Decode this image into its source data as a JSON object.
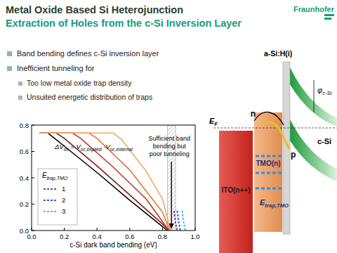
{
  "header": {
    "title": "Metal Oxide Based Si Heterojunction",
    "subtitle": "Extraction of Holes from the c-Si Inversion Layer",
    "logo": "Fraunhofer"
  },
  "bullets": [
    {
      "text": "Band bending defines c-Si inversion layer",
      "items": []
    },
    {
      "text": "Inefficient tunneling for",
      "items": [
        "Too low metal oxide trap density",
        "Unsuited energetic distribution of traps"
      ]
    }
  ],
  "diagram": {
    "asi_label": "a-Si:H(i)",
    "phi_label": [
      {
        "text": "φ"
      },
      {
        "text": "c-Si",
        "sub": true
      }
    ],
    "csi_label": "c-Si",
    "ef_label": [
      {
        "text": "E"
      },
      {
        "text": "F",
        "sub": true
      }
    ],
    "n_label": "n",
    "p_label": "p",
    "tmo_label": "TMO(n)",
    "ito_label": "ITO(n++)",
    "trap_label": [
      {
        "text": "E"
      },
      {
        "text": "trap,TMO",
        "sub": true
      }
    ]
  },
  "chart_data": {
    "type": "line",
    "x_label": "c-Si dark band bending (eV)",
    "xlim": [
      0,
      1.0
    ],
    "ylim": [
      0,
      0.8
    ],
    "xticks": [
      {
        "value": 0,
        "label": "0.0"
      },
      0.2,
      0.4,
      0.6,
      0.8,
      {
        "value": 1.0,
        "label": "1.0"
      }
    ],
    "yticks": [
      {
        "value": 0,
        "label": "0.0"
      },
      0.2,
      0.4,
      0.6,
      0.8
    ],
    "grid": false,
    "legend": "lower left",
    "legend_title": [
      {
        "text": "E"
      },
      {
        "text": "trap,TMO",
        "sub": true
      }
    ],
    "annotations": [
      [
        {
          "text": "ΔV"
        },
        {
          "text": "oc",
          "sub": true
        },
        {
          "text": " = V"
        },
        {
          "text": "oc,implied",
          "sub": true
        },
        {
          "text": " -V"
        },
        {
          "text": "oc,external",
          "sub": true
        }
      ],
      [
        {
          "text": "Sufficient band"
        },
        {
          "text": "bending but"
        },
        {
          "text": "poor tunneling"
        }
      ]
    ],
    "shaded_x": [
      0.83,
      0.88
    ],
    "series": [
      {
        "color": "#000000",
        "line_style": "solid",
        "x": [
          0.05,
          0.1,
          0.2,
          0.4,
          0.6,
          0.8,
          0.83
        ],
        "values": [
          0.74,
          0.74,
          0.64,
          0.44,
          0.23,
          0.03,
          0
        ]
      },
      {
        "color": "#7b1e12",
        "line_style": "solid",
        "x": [
          0.05,
          0.15,
          0.2,
          0.4,
          0.6,
          0.8,
          0.84
        ],
        "values": [
          0.74,
          0.74,
          0.7,
          0.49,
          0.27,
          0.05,
          0
        ]
      },
      {
        "color": "#c0392b",
        "line_style": "solid",
        "x": [
          0.05,
          0.25,
          0.3,
          0.5,
          0.7,
          0.84
        ],
        "values": [
          0.74,
          0.74,
          0.7,
          0.48,
          0.24,
          0
        ]
      },
      {
        "color": "#e0752a",
        "line_style": "solid",
        "x": [
          0.05,
          0.35,
          0.4,
          0.6,
          0.8,
          0.845
        ],
        "values": [
          0.74,
          0.74,
          0.7,
          0.46,
          0.14,
          0
        ]
      },
      {
        "color": "#f0a860",
        "line_style": "solid",
        "x": [
          0.05,
          0.5,
          0.55,
          0.7,
          0.8,
          0.85
        ],
        "values": [
          0.74,
          0.74,
          0.69,
          0.45,
          0.24,
          0
        ]
      },
      {
        "name": "1",
        "color": "#7a3fa0",
        "line_style": "dashed",
        "x": [
          0.87,
          0.88,
          0.89
        ],
        "values": [
          0.15,
          0.06,
          0
        ]
      },
      {
        "name": "2",
        "color": "#2e5cd6",
        "line_style": "dashed",
        "x": [
          0.89,
          0.9,
          0.91
        ],
        "values": [
          0.15,
          0.06,
          0
        ]
      },
      {
        "name": "3",
        "color": "#35c5e0",
        "line_style": "dashed",
        "x": [
          0.92,
          0.93,
          0.94
        ],
        "values": [
          0.15,
          0.06,
          0
        ]
      }
    ]
  }
}
